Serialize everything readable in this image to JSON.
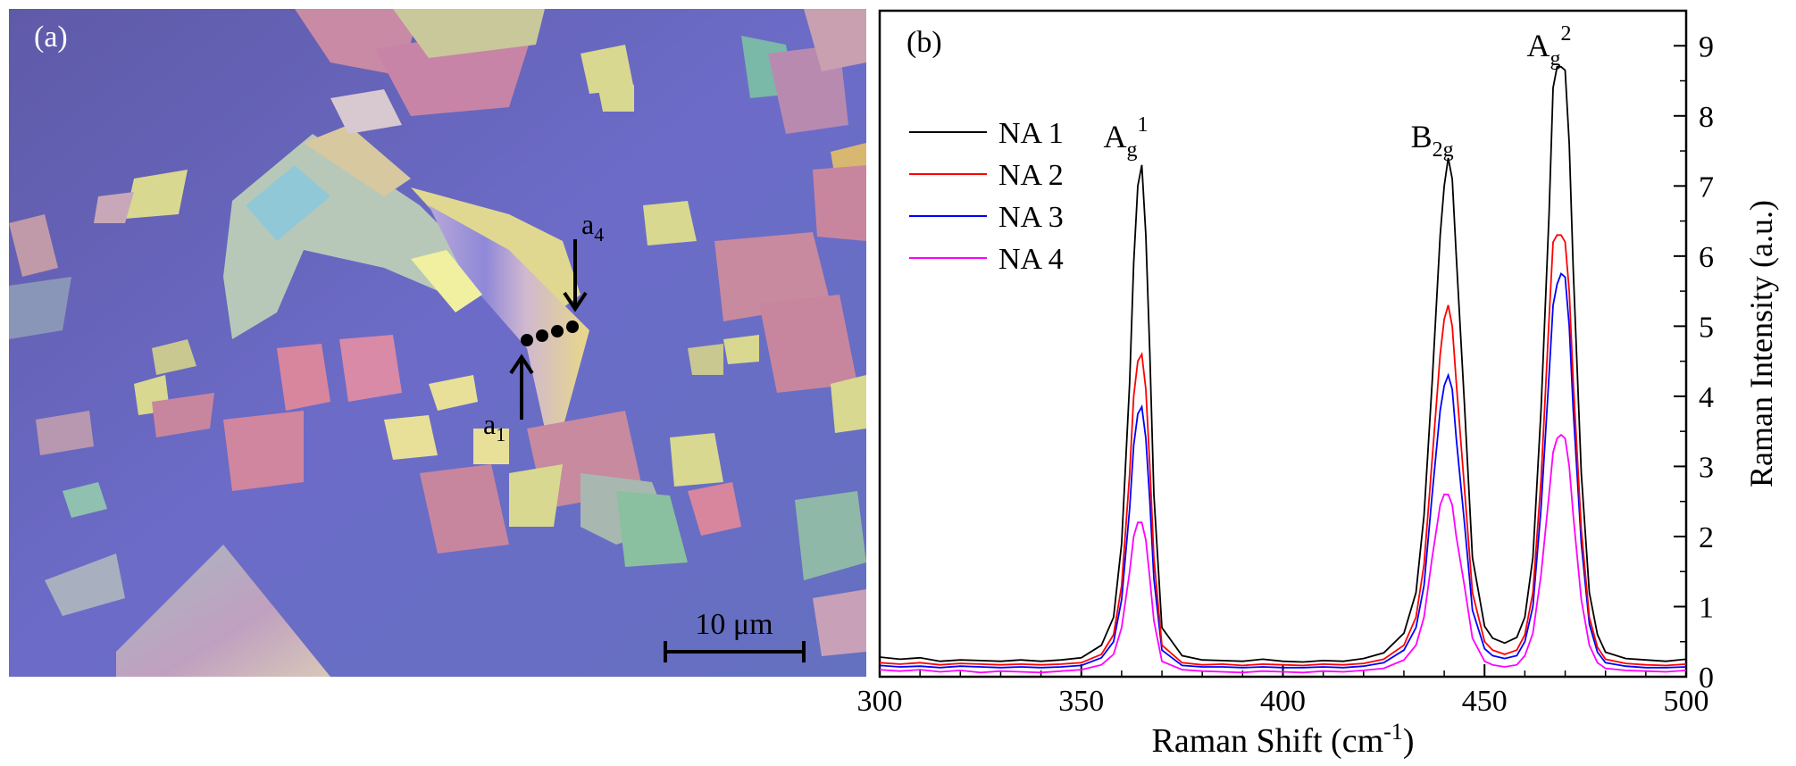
{
  "panel_a": {
    "label": "(a)",
    "scale_bar": "10 μm",
    "marker_start": "a",
    "marker_start_sub": "1",
    "marker_end": "a",
    "marker_end_sub": "4",
    "background_color": "#6a68c0"
  },
  "chart_data": {
    "type": "line",
    "panel_label": "(b)",
    "xlabel": "Raman Shift (cm",
    "xlabel_sup": "-1",
    "xlabel_close": ")",
    "ylabel": "Raman Intensity (a.u.)",
    "xlim": [
      300,
      500
    ],
    "ylim": [
      0,
      9.5
    ],
    "xticks": [
      300,
      350,
      400,
      450,
      500
    ],
    "yticks": [
      0,
      1,
      2,
      3,
      4,
      5,
      6,
      7,
      8,
      9
    ],
    "y_axis_side": "right",
    "legend_position": "top-left",
    "peak_labels": [
      {
        "base": "A",
        "sub": "g",
        "sup": "1",
        "x": 365,
        "y": 7.55
      },
      {
        "base": "B",
        "sub": "2g",
        "sup": "",
        "x": 441,
        "y": 7.55
      },
      {
        "base": "A",
        "sub": "g",
        "sup": "2",
        "x": 470,
        "y": 8.85
      }
    ],
    "series": [
      {
        "name": "NA 1",
        "color": "#000000",
        "x": [
          300,
          305,
          310,
          315,
          320,
          325,
          330,
          335,
          340,
          345,
          350,
          355,
          358,
          360,
          362,
          363,
          364,
          365,
          366,
          367,
          368,
          370,
          375,
          380,
          385,
          390,
          395,
          400,
          405,
          410,
          415,
          420,
          425,
          430,
          433,
          435,
          437,
          439,
          440,
          441,
          442,
          443,
          445,
          447,
          450,
          452,
          455,
          458,
          460,
          462,
          464,
          466,
          467,
          468,
          469,
          470,
          471,
          472,
          474,
          476,
          478,
          480,
          485,
          490,
          495,
          500
        ],
        "y": [
          0.28,
          0.25,
          0.27,
          0.22,
          0.24,
          0.23,
          0.22,
          0.24,
          0.22,
          0.24,
          0.27,
          0.45,
          0.85,
          1.9,
          4.2,
          5.9,
          7.0,
          7.3,
          6.3,
          4.6,
          2.6,
          0.7,
          0.3,
          0.24,
          0.23,
          0.22,
          0.25,
          0.22,
          0.21,
          0.23,
          0.22,
          0.26,
          0.34,
          0.62,
          1.2,
          2.3,
          4.2,
          6.3,
          7.0,
          7.4,
          7.1,
          6.0,
          3.9,
          1.7,
          0.72,
          0.55,
          0.48,
          0.56,
          0.85,
          1.7,
          3.8,
          6.6,
          8.4,
          8.7,
          8.7,
          8.65,
          7.6,
          5.8,
          2.9,
          1.2,
          0.6,
          0.35,
          0.26,
          0.24,
          0.22,
          0.25
        ]
      },
      {
        "name": "NA 2",
        "color": "#ff0000",
        "x": [
          300,
          305,
          310,
          315,
          320,
          325,
          330,
          335,
          340,
          345,
          350,
          355,
          358,
          360,
          362,
          363,
          364,
          365,
          366,
          367,
          368,
          370,
          375,
          380,
          385,
          390,
          395,
          400,
          405,
          410,
          415,
          420,
          425,
          430,
          433,
          435,
          437,
          439,
          440,
          441,
          442,
          443,
          445,
          447,
          450,
          452,
          455,
          458,
          460,
          462,
          464,
          466,
          467,
          468,
          469,
          470,
          471,
          472,
          474,
          476,
          478,
          480,
          485,
          490,
          495,
          500
        ],
        "y": [
          0.2,
          0.18,
          0.2,
          0.17,
          0.19,
          0.18,
          0.17,
          0.18,
          0.17,
          0.18,
          0.2,
          0.32,
          0.6,
          1.3,
          2.9,
          4.0,
          4.5,
          4.6,
          4.1,
          3.0,
          1.7,
          0.45,
          0.2,
          0.17,
          0.18,
          0.16,
          0.18,
          0.17,
          0.16,
          0.18,
          0.17,
          0.19,
          0.25,
          0.45,
          0.85,
          1.6,
          3.1,
          4.6,
          5.1,
          5.3,
          5.0,
          4.2,
          2.7,
          1.2,
          0.5,
          0.38,
          0.32,
          0.38,
          0.6,
          1.2,
          2.8,
          5.1,
          6.2,
          6.3,
          6.3,
          6.2,
          5.5,
          4.2,
          2.1,
          0.85,
          0.42,
          0.25,
          0.19,
          0.17,
          0.16,
          0.18
        ]
      },
      {
        "name": "NA 3",
        "color": "#0000ff",
        "x": [
          300,
          305,
          310,
          315,
          320,
          325,
          330,
          335,
          340,
          345,
          350,
          355,
          358,
          360,
          362,
          363,
          364,
          365,
          366,
          367,
          368,
          370,
          375,
          380,
          385,
          390,
          395,
          400,
          405,
          410,
          415,
          420,
          425,
          430,
          433,
          435,
          437,
          439,
          440,
          441,
          442,
          443,
          445,
          447,
          450,
          452,
          455,
          458,
          460,
          462,
          464,
          466,
          467,
          468,
          469,
          470,
          471,
          472,
          474,
          476,
          478,
          480,
          485,
          490,
          495,
          500
        ],
        "y": [
          0.16,
          0.14,
          0.15,
          0.13,
          0.15,
          0.14,
          0.13,
          0.14,
          0.13,
          0.14,
          0.16,
          0.27,
          0.5,
          1.1,
          2.4,
          3.3,
          3.75,
          3.85,
          3.4,
          2.5,
          1.4,
          0.38,
          0.16,
          0.14,
          0.14,
          0.13,
          0.14,
          0.13,
          0.13,
          0.14,
          0.13,
          0.15,
          0.2,
          0.38,
          0.7,
          1.3,
          2.6,
          3.8,
          4.15,
          4.3,
          4.1,
          3.4,
          2.2,
          0.95,
          0.4,
          0.3,
          0.26,
          0.3,
          0.5,
          1.0,
          2.4,
          4.3,
          5.3,
          5.6,
          5.75,
          5.7,
          5.0,
          3.8,
          1.9,
          0.75,
          0.35,
          0.2,
          0.15,
          0.13,
          0.13,
          0.14
        ]
      },
      {
        "name": "NA 4",
        "color": "#ff00ff",
        "x": [
          300,
          305,
          310,
          315,
          320,
          325,
          330,
          335,
          340,
          345,
          350,
          355,
          358,
          360,
          362,
          363,
          364,
          365,
          366,
          367,
          368,
          370,
          375,
          380,
          385,
          390,
          395,
          400,
          405,
          410,
          415,
          420,
          425,
          430,
          433,
          435,
          437,
          439,
          440,
          441,
          442,
          443,
          445,
          447,
          450,
          452,
          455,
          458,
          460,
          462,
          464,
          466,
          467,
          468,
          469,
          470,
          471,
          472,
          474,
          476,
          478,
          480,
          485,
          490,
          495,
          500
        ],
        "y": [
          0.1,
          0.08,
          0.1,
          0.07,
          0.09,
          0.06,
          0.08,
          0.07,
          0.06,
          0.08,
          0.1,
          0.17,
          0.32,
          0.7,
          1.5,
          2.0,
          2.2,
          2.2,
          1.95,
          1.4,
          0.8,
          0.22,
          0.1,
          0.08,
          0.07,
          0.06,
          0.08,
          0.07,
          0.06,
          0.08,
          0.07,
          0.09,
          0.12,
          0.24,
          0.45,
          0.85,
          1.7,
          2.45,
          2.6,
          2.6,
          2.45,
          2.0,
          1.3,
          0.55,
          0.22,
          0.17,
          0.14,
          0.17,
          0.3,
          0.62,
          1.45,
          2.6,
          3.2,
          3.4,
          3.45,
          3.4,
          3.0,
          2.3,
          1.1,
          0.45,
          0.2,
          0.12,
          0.09,
          0.08,
          0.07,
          0.09
        ]
      }
    ]
  }
}
